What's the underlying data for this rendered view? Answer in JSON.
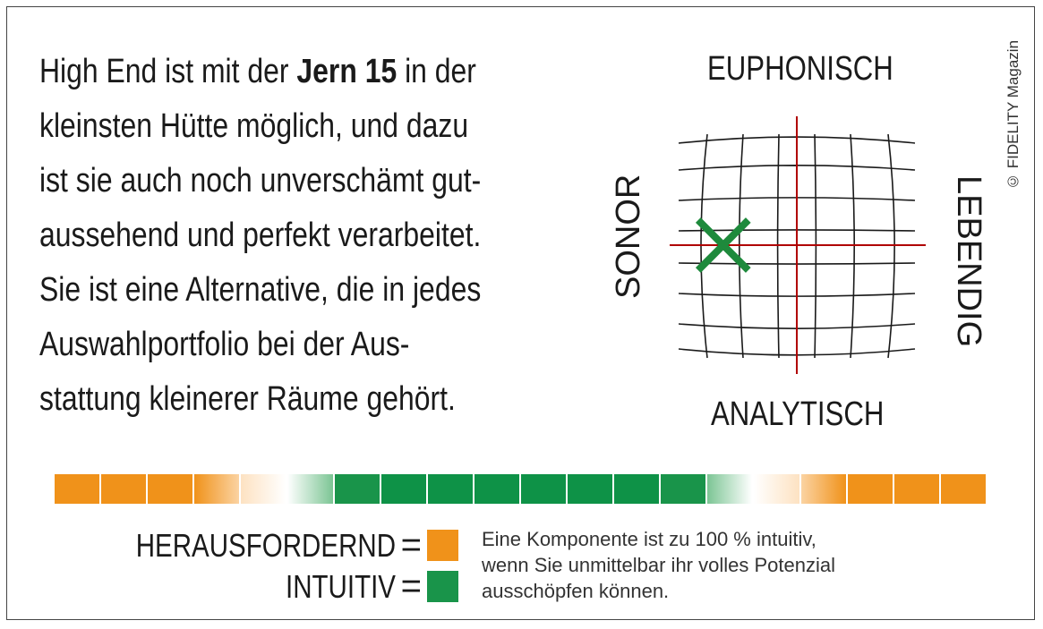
{
  "copyright": "© FIDELITY Magazin",
  "verdict": {
    "lines": [
      {
        "pre": "High End ist mit der ",
        "bold": "Jern 15",
        "post": " in der"
      },
      {
        "pre": "kleinsten Hütte möglich, und dazu",
        "bold": "",
        "post": ""
      },
      {
        "pre": "ist sie auch noch unverschämt gut-",
        "bold": "",
        "post": ""
      },
      {
        "pre": "aussehend und perfekt verarbeitet.",
        "bold": "",
        "post": ""
      },
      {
        "pre": "Sie ist eine Alternative, die in jedes",
        "bold": "",
        "post": ""
      },
      {
        "pre": "Auswahlportfolio bei der Aus-",
        "bold": "",
        "post": ""
      },
      {
        "pre": "stattung kleinerer Räume gehört.",
        "bold": "",
        "post": ""
      }
    ]
  },
  "sound_map": {
    "labels": {
      "top": "EUPHONISCH",
      "bottom": "ANALYTISCH",
      "left": "SONOR",
      "right": "LEBENDIG"
    },
    "marker": {
      "x": -0.6,
      "y": 0.0,
      "color": "#1e8a3c",
      "icon": "x-mark-icon"
    },
    "axis_color": "#b00000",
    "grid_color": "#1a1a1a"
  },
  "intuitiv_scale": {
    "segments": [
      "#f0921a",
      "#f0921a",
      "#f0921a",
      "linear-gradient(to right,#f0921a,#fbd3a2)",
      "linear-gradient(to right,#fde2c2,#ffffff)",
      "linear-gradient(to right,#ffffff,#7cc594)",
      "#19944a",
      "#0e9247",
      "#0e9247",
      "#0e9247",
      "#0e9247",
      "#0e9247",
      "#0e9247",
      "#19944a",
      "linear-gradient(to right,#7cc594,#ffffff)",
      "linear-gradient(to right,#ffffff,#fde2c2)",
      "linear-gradient(to right,#fbd3a2,#f0921a)",
      "#f0921a",
      "#f0921a",
      "#f0921a"
    ]
  },
  "legend": {
    "challenging": {
      "label": "HERAUSFORDERND",
      "eq": "=",
      "color": "#f0921a"
    },
    "intuitive": {
      "label": "INTUITIV",
      "eq": "=",
      "color": "#19944a"
    }
  },
  "note": {
    "lines": [
      "Eine Komponente ist zu 100 % intuitiv,",
      "wenn Sie unmittelbar ihr volles Potenzial",
      "ausschöpfen können."
    ]
  }
}
